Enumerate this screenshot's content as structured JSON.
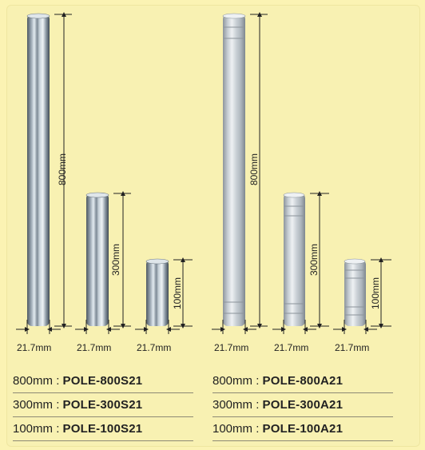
{
  "left_set": {
    "poles": [
      {
        "length": "800mm",
        "diameter": "21.7mm"
      },
      {
        "length": "300mm",
        "diameter": "21.7mm"
      },
      {
        "length": "100mm",
        "diameter": "21.7mm"
      }
    ],
    "products": [
      {
        "size": "800mm",
        "sep": " : ",
        "code": "POLE-800S21"
      },
      {
        "size": "300mm",
        "sep": " : ",
        "code": "POLE-300S21"
      },
      {
        "size": "100mm",
        "sep": " : ",
        "code": "POLE-100S21"
      }
    ]
  },
  "right_set": {
    "poles": [
      {
        "length": "800mm",
        "diameter": "21.7mm"
      },
      {
        "length": "300mm",
        "diameter": "21.7mm"
      },
      {
        "length": "100mm",
        "diameter": "21.7mm"
      }
    ],
    "products": [
      {
        "size": "800mm",
        "sep": " : ",
        "code": "POLE-800A21"
      },
      {
        "size": "300mm",
        "sep": " : ",
        "code": "POLE-300A21"
      },
      {
        "size": "100mm",
        "sep": " : ",
        "code": "POLE-100A21"
      }
    ]
  }
}
